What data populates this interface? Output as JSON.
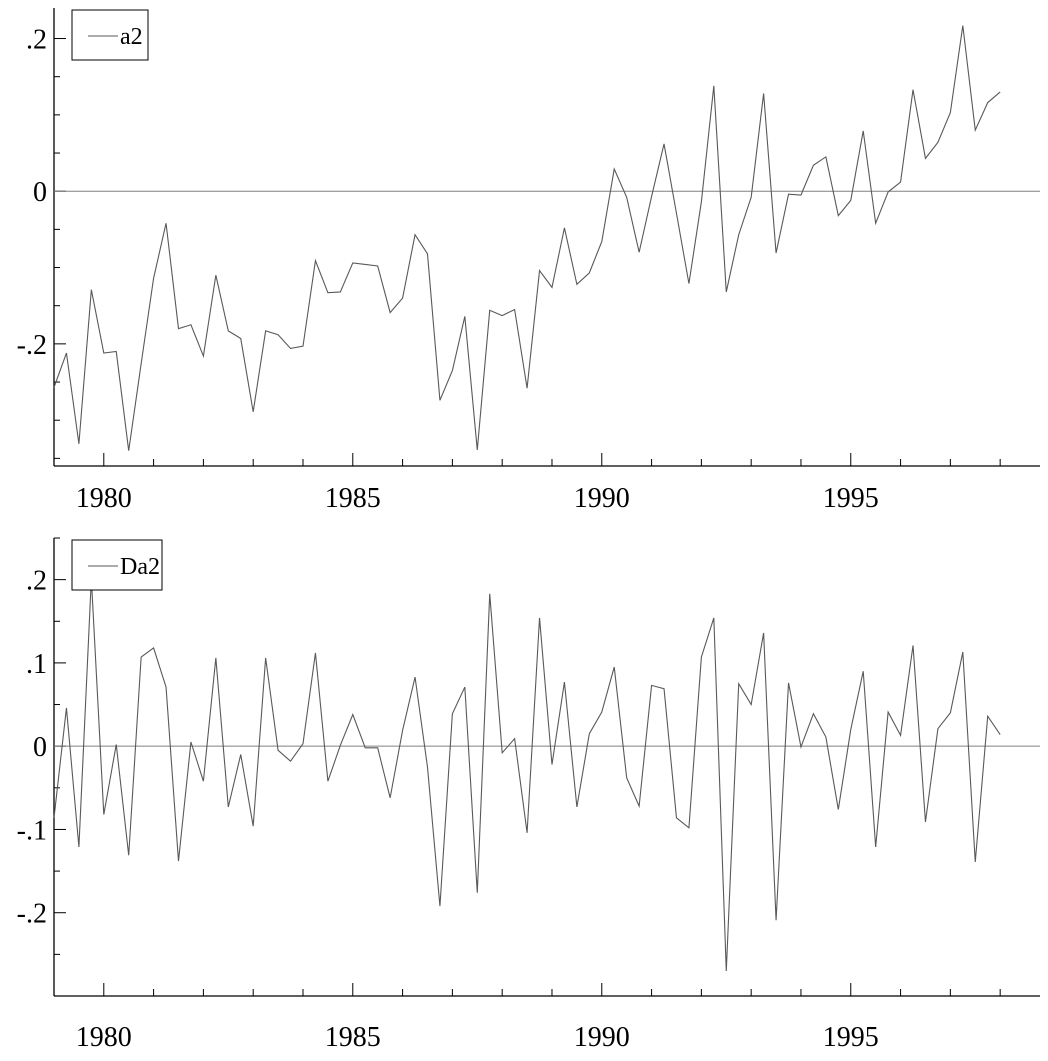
{
  "chart_data": [
    {
      "type": "line",
      "title": "",
      "xlabel": "",
      "ylabel": "",
      "xlim": [
        1979.0,
        1998.8
      ],
      "ylim": [
        -0.36,
        0.24
      ],
      "x_ticks": [
        1980,
        1985,
        1990,
        1995
      ],
      "x_tick_labels": [
        "1980",
        "1985",
        "1990",
        "1995"
      ],
      "y_ticks": [
        0.2,
        0,
        -0.2
      ],
      "y_tick_labels": [
        ".2",
        "0",
        "-.2"
      ],
      "zero_line": true,
      "grid": false,
      "legend": {
        "position": "top-left",
        "entries": [
          "a2"
        ]
      },
      "color": "#595959",
      "series": [
        {
          "name": "a2",
          "x_start": 1979.0,
          "x_step": 0.25,
          "values": [
            -0.257,
            -0.212,
            -0.331,
            -0.129,
            -0.212,
            -0.21,
            -0.34,
            -0.226,
            -0.114,
            -0.042,
            -0.18,
            -0.175,
            -0.216,
            -0.11,
            -0.183,
            -0.193,
            -0.289,
            -0.183,
            -0.188,
            -0.206,
            -0.203,
            -0.091,
            -0.133,
            -0.132,
            -0.094,
            -0.096,
            -0.098,
            -0.159,
            -0.14,
            -0.057,
            -0.082,
            -0.274,
            -0.235,
            -0.164,
            -0.339,
            -0.156,
            -0.163,
            -0.155,
            -0.258,
            -0.104,
            -0.126,
            -0.048,
            -0.122,
            -0.107,
            -0.066,
            0.029,
            -0.008,
            -0.08,
            -0.007,
            0.062,
            -0.029,
            -0.121,
            -0.014,
            0.138,
            -0.132,
            -0.057,
            -0.008,
            0.128,
            -0.081,
            -0.004,
            -0.005,
            0.034,
            0.045,
            -0.032,
            -0.012,
            0.079,
            -0.042,
            -0.001,
            0.012,
            0.133,
            0.043,
            0.064,
            0.103,
            0.217,
            0.08,
            0.116,
            0.13
          ]
        }
      ]
    },
    {
      "type": "line",
      "title": "",
      "xlabel": "",
      "ylabel": "",
      "xlim": [
        1979.0,
        1998.8
      ],
      "ylim": [
        -0.3,
        0.25
      ],
      "x_ticks": [
        1980,
        1985,
        1990,
        1995
      ],
      "x_tick_labels": [
        "1980",
        "1985",
        "1990",
        "1995"
      ],
      "y_ticks": [
        0.2,
        0.1,
        0,
        -0.1,
        -0.2
      ],
      "y_tick_labels": [
        ".2",
        ".1",
        "0",
        "-.1",
        "-.2"
      ],
      "zero_line": true,
      "grid": false,
      "legend": {
        "position": "top-left",
        "entries": [
          "Da2"
        ]
      },
      "color": "#595959",
      "series": [
        {
          "name": "Da2",
          "x_start": 1979.0,
          "x_step": 0.25,
          "values": [
            -0.086,
            0.046,
            -0.121,
            0.201,
            -0.082,
            0.002,
            -0.131,
            0.107,
            0.118,
            0.071,
            -0.138,
            0.005,
            -0.042,
            0.106,
            -0.073,
            -0.01,
            -0.096,
            0.106,
            -0.005,
            -0.018,
            0.003,
            0.112,
            -0.042,
            0.001,
            0.038,
            -0.002,
            -0.002,
            -0.062,
            0.019,
            0.083,
            -0.025,
            -0.192,
            0.039,
            0.071,
            -0.176,
            0.183,
            -0.008,
            0.009,
            -0.104,
            0.154,
            -0.022,
            0.077,
            -0.073,
            0.015,
            0.041,
            0.095,
            -0.038,
            -0.072,
            0.073,
            0.069,
            -0.086,
            -0.098,
            0.107,
            0.154,
            -0.27,
            0.075,
            0.05,
            0.136,
            -0.209,
            0.076,
            -0.001,
            0.039,
            0.011,
            -0.076,
            0.02,
            0.09,
            -0.121,
            0.041,
            0.013,
            0.121,
            -0.091,
            0.021,
            0.04,
            0.113,
            -0.139,
            0.036,
            0.014
          ]
        }
      ]
    }
  ]
}
